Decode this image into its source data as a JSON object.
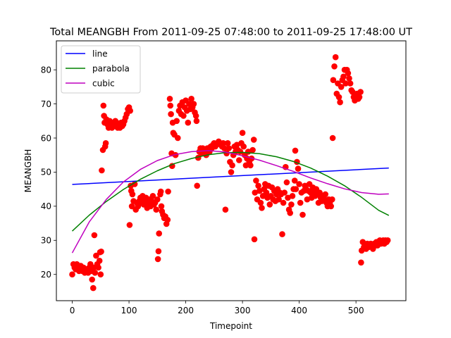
{
  "chart_data": {
    "type": "scatter",
    "title": "Total MEANGBH From 2011-09-25 07:48:00 to 2011-09-25 17:48:00 UT",
    "xlabel": "Timepoint",
    "ylabel": "MEANGBH",
    "xlim": [
      -28,
      588
    ],
    "ylim": [
      12.3,
      88.5
    ],
    "xticks": [
      0,
      100,
      200,
      300,
      400,
      500
    ],
    "yticks": [
      20,
      30,
      40,
      50,
      60,
      70,
      80
    ],
    "grid": false,
    "legend_position": "top-left",
    "point_color": "#ff0000",
    "points": [
      [
        0,
        20
      ],
      [
        2,
        23
      ],
      [
        4,
        22
      ],
      [
        6,
        21.5
      ],
      [
        8,
        23
      ],
      [
        10,
        22
      ],
      [
        12,
        21
      ],
      [
        15,
        22.5
      ],
      [
        18,
        21
      ],
      [
        20,
        22
      ],
      [
        22,
        20.5
      ],
      [
        25,
        21.5
      ],
      [
        28,
        20.5
      ],
      [
        30,
        22
      ],
      [
        32,
        23
      ],
      [
        34,
        21
      ],
      [
        35,
        18.5
      ],
      [
        37,
        16
      ],
      [
        38,
        22
      ],
      [
        39,
        31.5
      ],
      [
        40,
        20.5
      ],
      [
        42,
        25.5
      ],
      [
        44,
        23
      ],
      [
        46,
        22
      ],
      [
        48,
        24
      ],
      [
        49,
        26.5
      ],
      [
        50,
        20
      ],
      [
        51,
        26.7
      ],
      [
        52,
        50.5
      ],
      [
        54,
        56.5
      ],
      [
        55,
        69.5
      ],
      [
        56,
        66.5
      ],
      [
        57,
        64.5
      ],
      [
        58,
        57.5
      ],
      [
        59,
        58.5
      ],
      [
        60,
        65.5
      ],
      [
        62,
        64
      ],
      [
        64,
        63
      ],
      [
        66,
        65
      ],
      [
        68,
        64.5
      ],
      [
        70,
        63
      ],
      [
        72,
        64.5
      ],
      [
        74,
        63.5
      ],
      [
        76,
        65
      ],
      [
        78,
        64.5
      ],
      [
        80,
        63
      ],
      [
        82,
        64
      ],
      [
        84,
        63
      ],
      [
        86,
        64.5
      ],
      [
        88,
        63.5
      ],
      [
        90,
        64
      ],
      [
        92,
        65
      ],
      [
        94,
        66
      ],
      [
        96,
        67
      ],
      [
        98,
        68.5
      ],
      [
        100,
        69
      ],
      [
        102,
        68
      ],
      [
        101,
        34.5
      ],
      [
        103,
        46
      ],
      [
        104,
        44.5
      ],
      [
        105,
        40
      ],
      [
        106,
        43.5
      ],
      [
        108,
        41.5
      ],
      [
        110,
        46.5
      ],
      [
        112,
        39
      ],
      [
        114,
        41
      ],
      [
        116,
        40
      ],
      [
        118,
        41.5
      ],
      [
        120,
        42.5
      ],
      [
        122,
        41
      ],
      [
        124,
        43
      ],
      [
        126,
        40.5
      ],
      [
        128,
        41.5
      ],
      [
        130,
        42.5
      ],
      [
        132,
        39.5
      ],
      [
        134,
        41
      ],
      [
        136,
        42
      ],
      [
        138,
        40
      ],
      [
        140,
        41.5
      ],
      [
        142,
        43
      ],
      [
        144,
        40.5
      ],
      [
        146,
        41
      ],
      [
        148,
        39
      ],
      [
        150,
        42
      ],
      [
        151,
        24.5
      ],
      [
        152,
        26.8
      ],
      [
        153,
        32
      ],
      [
        155,
        43.5
      ],
      [
        156,
        44.3
      ],
      [
        157,
        40
      ],
      [
        158,
        38.5
      ],
      [
        160,
        37.5
      ],
      [
        162,
        36.5
      ],
      [
        164,
        37
      ],
      [
        166,
        34.8
      ],
      [
        168,
        36
      ],
      [
        169,
        44.3
      ],
      [
        172,
        71.5
      ],
      [
        173,
        69.5
      ],
      [
        174,
        67
      ],
      [
        175,
        55.5
      ],
      [
        176,
        51.8
      ],
      [
        177,
        64.5
      ],
      [
        178,
        61.5
      ],
      [
        180,
        61
      ],
      [
        182,
        55
      ],
      [
        184,
        65
      ],
      [
        186,
        60
      ],
      [
        188,
        68
      ],
      [
        190,
        69.5
      ],
      [
        192,
        67
      ],
      [
        194,
        70.5
      ],
      [
        196,
        66.5
      ],
      [
        198,
        69
      ],
      [
        200,
        71
      ],
      [
        202,
        68
      ],
      [
        204,
        64.5
      ],
      [
        206,
        70
      ],
      [
        208,
        68.5
      ],
      [
        210,
        71.5
      ],
      [
        212,
        69
      ],
      [
        214,
        70
      ],
      [
        216,
        67.5
      ],
      [
        218,
        66.5
      ],
      [
        219,
        65
      ],
      [
        220,
        46
      ],
      [
        222,
        54.2
      ],
      [
        224,
        56
      ],
      [
        226,
        57
      ],
      [
        228,
        55.5
      ],
      [
        230,
        57
      ],
      [
        232,
        56
      ],
      [
        234,
        56.5
      ],
      [
        236,
        55
      ],
      [
        238,
        57
      ],
      [
        240,
        56.5
      ],
      [
        242,
        56
      ],
      [
        244,
        57.5
      ],
      [
        246,
        57
      ],
      [
        248,
        58
      ],
      [
        250,
        58.5
      ],
      [
        252,
        57.5
      ],
      [
        254,
        58
      ],
      [
        256,
        58.5
      ],
      [
        258,
        59
      ],
      [
        260,
        58.5
      ],
      [
        262,
        58
      ],
      [
        264,
        57.5
      ],
      [
        266,
        58.5
      ],
      [
        268,
        57
      ],
      [
        270,
        39
      ],
      [
        272,
        55.5
      ],
      [
        274,
        58.5
      ],
      [
        276,
        57
      ],
      [
        278,
        53
      ],
      [
        280,
        50
      ],
      [
        282,
        52
      ],
      [
        284,
        55
      ],
      [
        286,
        57.5
      ],
      [
        288,
        56
      ],
      [
        290,
        58
      ],
      [
        292,
        56.5
      ],
      [
        294,
        53.5
      ],
      [
        296,
        56
      ],
      [
        298,
        58.5
      ],
      [
        300,
        61.5
      ],
      [
        302,
        57.5
      ],
      [
        304,
        55
      ],
      [
        306,
        52
      ],
      [
        308,
        54
      ],
      [
        310,
        56
      ],
      [
        312,
        53
      ],
      [
        314,
        52
      ],
      [
        316,
        54
      ],
      [
        318,
        56.5
      ],
      [
        320,
        59.5
      ],
      [
        321,
        30.3
      ],
      [
        322,
        44
      ],
      [
        324,
        47.5
      ],
      [
        326,
        42
      ],
      [
        328,
        46
      ],
      [
        330,
        44.5
      ],
      [
        332,
        41
      ],
      [
        334,
        39.5
      ],
      [
        336,
        43
      ],
      [
        338,
        45
      ],
      [
        340,
        46.5
      ],
      [
        342,
        44
      ],
      [
        344,
        42.5
      ],
      [
        346,
        46
      ],
      [
        348,
        40.5
      ],
      [
        350,
        43
      ],
      [
        352,
        45.5
      ],
      [
        354,
        42
      ],
      [
        356,
        44.5
      ],
      [
        358,
        41.5
      ],
      [
        360,
        43.5
      ],
      [
        362,
        45
      ],
      [
        364,
        42
      ],
      [
        366,
        44
      ],
      [
        368,
        43.5
      ],
      [
        370,
        31.8
      ],
      [
        372,
        41
      ],
      [
        374,
        44
      ],
      [
        376,
        51.5
      ],
      [
        378,
        47
      ],
      [
        380,
        42.5
      ],
      [
        382,
        39
      ],
      [
        384,
        38
      ],
      [
        386,
        40.5
      ],
      [
        388,
        43
      ],
      [
        390,
        45
      ],
      [
        392,
        47.5
      ],
      [
        393,
        56.3
      ],
      [
        394,
        45
      ],
      [
        396,
        53
      ],
      [
        398,
        51
      ],
      [
        400,
        46.5
      ],
      [
        402,
        41
      ],
      [
        404,
        44
      ],
      [
        406,
        37.5
      ],
      [
        408,
        44.5
      ],
      [
        410,
        46
      ],
      [
        412,
        45
      ],
      [
        414,
        42
      ],
      [
        416,
        44.5
      ],
      [
        418,
        46.5
      ],
      [
        420,
        44
      ],
      [
        422,
        42.5
      ],
      [
        424,
        45.5
      ],
      [
        426,
        44
      ],
      [
        428,
        43
      ],
      [
        430,
        45
      ],
      [
        432,
        43.5
      ],
      [
        434,
        41
      ],
      [
        436,
        44
      ],
      [
        438,
        42.5
      ],
      [
        440,
        41.5
      ],
      [
        442,
        43
      ],
      [
        444,
        42
      ],
      [
        446,
        43.5
      ],
      [
        448,
        41
      ],
      [
        450,
        40
      ],
      [
        452,
        42
      ],
      [
        454,
        41
      ],
      [
        456,
        40
      ],
      [
        458,
        42
      ],
      [
        459,
        60
      ],
      [
        460,
        77
      ],
      [
        462,
        81
      ],
      [
        464,
        83.7
      ],
      [
        466,
        73
      ],
      [
        468,
        76
      ],
      [
        470,
        72
      ],
      [
        472,
        70.5
      ],
      [
        474,
        75
      ],
      [
        476,
        77
      ],
      [
        478,
        78
      ],
      [
        480,
        80
      ],
      [
        482,
        76
      ],
      [
        484,
        80
      ],
      [
        486,
        79
      ],
      [
        488,
        77.5
      ],
      [
        490,
        76
      ],
      [
        492,
        74
      ],
      [
        494,
        73.5
      ],
      [
        496,
        72
      ],
      [
        498,
        71
      ],
      [
        500,
        72.5
      ],
      [
        502,
        73
      ],
      [
        504,
        71.5
      ],
      [
        506,
        72
      ],
      [
        508,
        73.5
      ],
      [
        509,
        23.5
      ],
      [
        510,
        27
      ],
      [
        512,
        29.5
      ],
      [
        514,
        28
      ],
      [
        516,
        28.5
      ],
      [
        518,
        27.5
      ],
      [
        520,
        29
      ],
      [
        522,
        28
      ],
      [
        524,
        28.5
      ],
      [
        526,
        29
      ],
      [
        528,
        28
      ],
      [
        530,
        27.5
      ],
      [
        532,
        29
      ],
      [
        534,
        28.5
      ],
      [
        536,
        29.5
      ],
      [
        538,
        28.5
      ],
      [
        540,
        29
      ],
      [
        542,
        30
      ],
      [
        544,
        29
      ],
      [
        546,
        29.5
      ],
      [
        548,
        30
      ],
      [
        550,
        29
      ],
      [
        552,
        30
      ],
      [
        554,
        29.5
      ],
      [
        556,
        30
      ]
    ],
    "series": [
      {
        "name": "line",
        "color": "#0000ff",
        "x": [
          0,
          558
        ],
        "y": [
          46.4,
          51.2
        ]
      },
      {
        "name": "parabola",
        "color": "#008000",
        "x": [
          0,
          30,
          60,
          90,
          120,
          150,
          180,
          210,
          240,
          270,
          300,
          330,
          360,
          390,
          420,
          450,
          480,
          510,
          540,
          558
        ],
        "y": [
          32.7,
          37.4,
          41.4,
          44.9,
          47.9,
          50.4,
          52.5,
          54.0,
          55.1,
          55.7,
          55.8,
          55.4,
          54.5,
          53.1,
          51.2,
          48.8,
          46.0,
          42.6,
          38.8,
          37.3
        ]
      },
      {
        "name": "cubic",
        "color": "#bf00bf",
        "x": [
          0,
          30,
          60,
          90,
          120,
          150,
          180,
          210,
          240,
          270,
          300,
          330,
          360,
          390,
          420,
          450,
          480,
          510,
          540,
          558
        ],
        "y": [
          26.3,
          35.4,
          42.0,
          47.1,
          50.8,
          53.4,
          55.1,
          56.0,
          56.3,
          55.9,
          54.8,
          53.5,
          51.9,
          50.2,
          48.3,
          46.6,
          45.1,
          44.0,
          43.5,
          43.6
        ]
      }
    ]
  }
}
